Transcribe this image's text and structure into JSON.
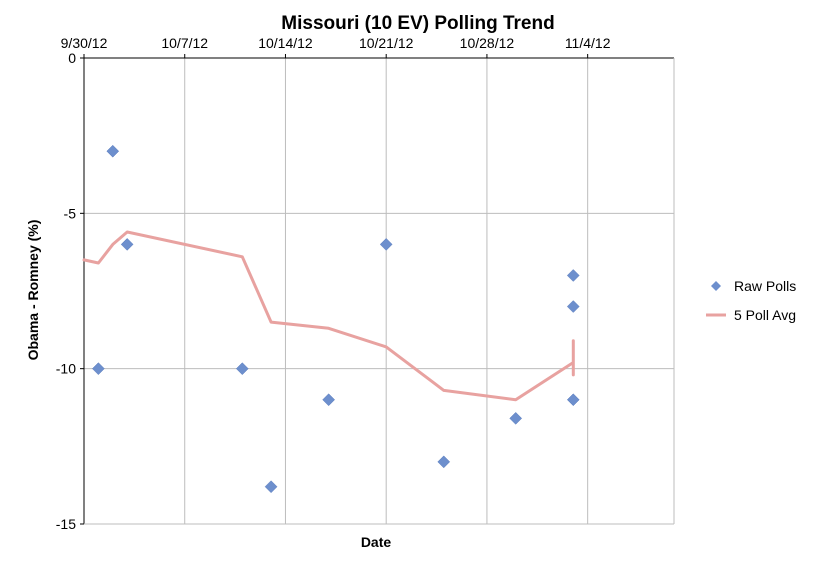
{
  "chart_data": {
    "type": "scatter",
    "title": "Missouri (10 EV) Polling Trend",
    "xlabel": "Date",
    "ylabel": "Obama - Romney (%)",
    "x_range": [
      "2012-09-30",
      "2012-11-10"
    ],
    "x_axis_position": "top",
    "ylim": [
      -15,
      0
    ],
    "y_ticks": [
      0,
      -5,
      -10,
      -15
    ],
    "x_ticks": [
      {
        "date": "2012-09-30",
        "label": "9/30/12"
      },
      {
        "date": "2012-10-07",
        "label": "10/7/12"
      },
      {
        "date": "2012-10-14",
        "label": "10/14/12"
      },
      {
        "date": "2012-10-21",
        "label": "10/21/12"
      },
      {
        "date": "2012-10-28",
        "label": "10/28/12"
      },
      {
        "date": "2012-11-04",
        "label": "11/4/12"
      }
    ],
    "grid": true,
    "legend_position": "right",
    "series": [
      {
        "name": "Raw Polls",
        "kind": "markers",
        "color": "#6d8fcd",
        "points": [
          {
            "x": "2012-10-01",
            "y": -10
          },
          {
            "x": "2012-10-02",
            "y": -3
          },
          {
            "x": "2012-10-03",
            "y": -6
          },
          {
            "x": "2012-10-11",
            "y": -10
          },
          {
            "x": "2012-10-13",
            "y": -13.8
          },
          {
            "x": "2012-10-17",
            "y": -11
          },
          {
            "x": "2012-10-21",
            "y": -6
          },
          {
            "x": "2012-10-25",
            "y": -13
          },
          {
            "x": "2012-10-30",
            "y": -11.6
          },
          {
            "x": "2012-11-03",
            "y": -7
          },
          {
            "x": "2012-11-03",
            "y": -8
          },
          {
            "x": "2012-11-03",
            "y": -11
          }
        ]
      },
      {
        "name": "5 Poll Avg",
        "kind": "line",
        "color": "#e8a2a0",
        "points": [
          {
            "x": "2012-09-30",
            "y": -6.5
          },
          {
            "x": "2012-10-01",
            "y": -6.6
          },
          {
            "x": "2012-10-02",
            "y": -6
          },
          {
            "x": "2012-10-03",
            "y": -5.6
          },
          {
            "x": "2012-10-11",
            "y": -6.4
          },
          {
            "x": "2012-10-13",
            "y": -8.5
          },
          {
            "x": "2012-10-17",
            "y": -8.7
          },
          {
            "x": "2012-10-21",
            "y": -9.3
          },
          {
            "x": "2012-10-25",
            "y": -10.7
          },
          {
            "x": "2012-10-30",
            "y": -11
          },
          {
            "x": "2012-11-03",
            "y": -9.8
          },
          {
            "x": "2012-11-03",
            "y": -9.1
          },
          {
            "x": "2012-11-03",
            "y": -10.2
          }
        ]
      }
    ]
  }
}
